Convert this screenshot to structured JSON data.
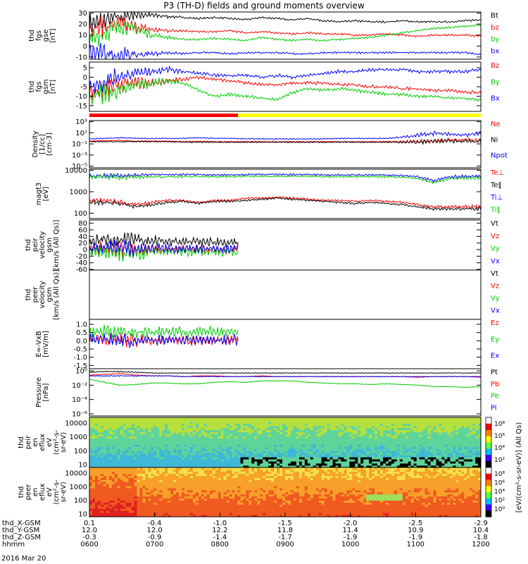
{
  "title": "P3 (TH-D) fields and ground moments overview",
  "footer_date": "2016 Mar 20",
  "chart_data": [
    {
      "id": "fgs_gse",
      "type": "line",
      "ylabel": [
        "thd",
        "fgs",
        "gse",
        "[nT]"
      ],
      "ylim": [
        -12,
        31
      ],
      "yticks": [
        "30",
        "20",
        "10",
        "0",
        "-10"
      ],
      "ytick_values": [
        30,
        20,
        10,
        0,
        -10
      ],
      "legend": [
        "Bt",
        "bz",
        "by",
        "bx"
      ],
      "series": [
        {
          "name": "Bt",
          "color": "#000000",
          "values": [
            20,
            23,
            27,
            29,
            28,
            27,
            26,
            25,
            26,
            25,
            24,
            26,
            25,
            24,
            25,
            23,
            22,
            23,
            22,
            22,
            23,
            22,
            22,
            22,
            23,
            24
          ]
        },
        {
          "name": "bz",
          "color": "#ff0000",
          "values": [
            16,
            18,
            20,
            17,
            15,
            14,
            14,
            13,
            13,
            14,
            12,
            13,
            12,
            11,
            12,
            11,
            11,
            10,
            10,
            11,
            10,
            9,
            10,
            10,
            10,
            9
          ]
        },
        {
          "name": "by",
          "color": "#00cc00",
          "values": [
            5,
            12,
            18,
            15,
            10,
            8,
            6,
            6,
            7,
            6,
            5,
            8,
            6,
            5,
            6,
            5,
            6,
            7,
            8,
            10,
            12,
            14,
            16,
            17,
            18,
            19
          ]
        },
        {
          "name": "bx",
          "color": "#0000ff",
          "values": [
            -6,
            -7,
            -8,
            -8,
            -7,
            -6,
            -7,
            -6,
            -6,
            -7,
            -6,
            -6,
            -6,
            -7,
            -7,
            -6,
            -6,
            -6,
            -6,
            -6,
            -6,
            -6,
            -6,
            -6,
            -6,
            -8
          ]
        }
      ],
      "osc": [
        10,
        10,
        8,
        6,
        3,
        2,
        1,
        1,
        1,
        1,
        1,
        1,
        1,
        1,
        1,
        1,
        1,
        1,
        1,
        1,
        1,
        1,
        1,
        1,
        1,
        1
      ]
    },
    {
      "id": "fgs_gsm",
      "type": "line",
      "ylabel": [
        "thd",
        "fgs",
        "gsm",
        "[nT]"
      ],
      "ylim": [
        -18,
        8
      ],
      "yticks": [
        "5",
        "0",
        "-5",
        "-10",
        "-15"
      ],
      "ytick_values": [
        5,
        0,
        -5,
        -10,
        -15
      ],
      "legend": [
        "Bz",
        "By",
        "Bx"
      ],
      "series": [
        {
          "name": "Bz",
          "color": "#ff0000",
          "values": [
            -8,
            -6,
            -4,
            -3,
            -3,
            -2,
            -1,
            0,
            -1,
            -2,
            -3,
            -4,
            -4,
            -3,
            -3,
            -3,
            -4,
            -4,
            -5,
            -5,
            -6,
            -6,
            -7,
            -7,
            -8,
            -8
          ]
        },
        {
          "name": "By",
          "color": "#00cc00",
          "values": [
            -11,
            -9,
            -6,
            -4,
            -3,
            -2,
            -3,
            -7,
            -10,
            -9,
            -10,
            -11,
            -12,
            -8,
            -6,
            -7,
            -6,
            -7,
            -8,
            -9,
            -9,
            -10,
            -10,
            -11,
            -11,
            -12
          ]
        },
        {
          "name": "Bx",
          "color": "#0000ff",
          "values": [
            -5,
            -2,
            1,
            2,
            3,
            4,
            3,
            2,
            1,
            1,
            1,
            0,
            1,
            0,
            1,
            2,
            3,
            3,
            4,
            4,
            4,
            3,
            3,
            3,
            3,
            4
          ]
        }
      ],
      "osc": [
        6,
        6,
        5,
        4,
        3,
        2,
        1,
        1,
        1,
        1,
        1,
        1,
        1,
        1,
        1,
        1,
        1,
        1,
        1,
        1,
        1,
        1,
        1,
        1,
        1,
        1
      ]
    },
    {
      "id": "density",
      "type": "line",
      "log": true,
      "ylabel": [
        "Density",
        "[1/cc]",
        "[cm-3]"
      ],
      "ylim": [
        -5.3,
        3.2
      ],
      "yticks": [
        "10³",
        "10¹",
        "10⁻¹",
        "10⁻³",
        "10⁻⁵"
      ],
      "ytick_values": [
        3,
        1,
        -1,
        -3,
        -5
      ],
      "legend": [
        "Ne",
        "Ni",
        "Npot"
      ],
      "series": [
        {
          "name": "Ne",
          "color": "#ff0000",
          "values": [
            -0.5,
            -0.4,
            -0.4,
            -0.5,
            -0.5,
            -0.5,
            -0.6,
            -0.5,
            -0.6,
            -0.6,
            -0.6,
            -0.6,
            -0.6,
            -0.6,
            -0.6,
            -0.6,
            -0.6,
            -0.6,
            -0.6,
            -0.6,
            -0.6,
            -0.6,
            -0.4,
            -0.3,
            -0.3,
            -0.3
          ]
        },
        {
          "name": "Ni",
          "color": "#000000",
          "values": [
            -0.6,
            -0.6,
            -0.6,
            -0.6,
            -0.6,
            -0.6,
            -0.7,
            -0.7,
            -0.7,
            -0.7,
            -0.7,
            -0.7,
            -0.7,
            -0.7,
            -0.7,
            -0.7,
            -0.7,
            -0.7,
            -0.7,
            -0.7,
            -0.7,
            -0.7,
            -0.5,
            -0.5,
            -0.5,
            -0.5
          ]
        },
        {
          "name": "Npot",
          "color": "#0000ff",
          "values": [
            -0.1,
            0.0,
            0.1,
            0.0,
            0.0,
            0.0,
            0.0,
            0.1,
            0.0,
            0.0,
            -0.1,
            -0.1,
            -0.1,
            -0.1,
            -0.1,
            -0.1,
            0.0,
            0.0,
            0.0,
            0.0,
            0.2,
            0.6,
            0.9,
            0.7,
            0.6,
            0.8
          ]
        }
      ],
      "osc": [
        0.1,
        0.1,
        0.1,
        0.1,
        0.1,
        0.1,
        0.1,
        0.1,
        0.1,
        0.1,
        0.1,
        0.1,
        0.1,
        0.1,
        0.1,
        0.1,
        0.1,
        0.1,
        0.1,
        0.1,
        0.2,
        0.4,
        0.5,
        0.4,
        0.4,
        0.5
      ]
    },
    {
      "id": "temperature",
      "type": "line",
      "log": true,
      "ylabel": [
        "magt3",
        "[eV]"
      ],
      "ylim": [
        1.75,
        4.05
      ],
      "yticks": [
        "10000",
        "1000",
        "100"
      ],
      "ytick_values": [
        4,
        3,
        2
      ],
      "legend": [
        "Te⊥",
        "Te‖",
        "Ti⊥",
        "Ti‖"
      ],
      "series": [
        {
          "name": "Te⊥",
          "color": "#ff0000",
          "values": [
            2.6,
            2.6,
            2.5,
            2.4,
            2.5,
            2.6,
            2.6,
            2.5,
            2.6,
            2.6,
            2.7,
            2.7,
            2.75,
            2.7,
            2.65,
            2.6,
            2.6,
            2.55,
            2.6,
            2.55,
            2.5,
            2.4,
            2.3,
            2.3,
            2.3,
            2.3
          ]
        },
        {
          "name": "Te‖",
          "color": "#000000",
          "values": [
            2.5,
            2.5,
            2.45,
            2.3,
            2.4,
            2.5,
            2.55,
            2.45,
            2.55,
            2.55,
            2.6,
            2.65,
            2.7,
            2.65,
            2.6,
            2.55,
            2.5,
            2.45,
            2.5,
            2.45,
            2.4,
            2.3,
            2.2,
            2.2,
            2.2,
            2.2
          ]
        },
        {
          "name": "Ti⊥",
          "color": "#0000ff",
          "values": [
            3.75,
            3.75,
            3.75,
            3.78,
            3.8,
            3.8,
            3.8,
            3.8,
            3.78,
            3.78,
            3.8,
            3.8,
            3.8,
            3.8,
            3.8,
            3.78,
            3.78,
            3.78,
            3.78,
            3.78,
            3.75,
            3.7,
            3.5,
            3.7,
            3.72,
            3.72
          ]
        },
        {
          "name": "Ti‖",
          "color": "#00cc00",
          "values": [
            3.7,
            3.68,
            3.66,
            3.68,
            3.7,
            3.7,
            3.7,
            3.72,
            3.7,
            3.7,
            3.72,
            3.72,
            3.72,
            3.72,
            3.72,
            3.7,
            3.7,
            3.7,
            3.7,
            3.7,
            3.68,
            3.62,
            3.4,
            3.62,
            3.64,
            3.64
          ]
        }
      ],
      "osc": [
        0.1,
        0.12,
        0.12,
        0.1,
        0.08,
        0.06,
        0.06,
        0.05,
        0.05,
        0.05,
        0.05,
        0.05,
        0.05,
        0.05,
        0.05,
        0.05,
        0.05,
        0.05,
        0.05,
        0.05,
        0.05,
        0.06,
        0.08,
        0.08,
        0.08,
        0.1
      ]
    },
    {
      "id": "peir_velocity",
      "type": "line",
      "ylabel": [
        "thd",
        "peir",
        "velocity",
        "gsm",
        "[km/s (All Qs)]"
      ],
      "ylim": [
        -62,
        90
      ],
      "yticks": [
        "80",
        "60",
        "40",
        "20",
        "0",
        "-20",
        "-40",
        "-60"
      ],
      "ytick_values": [
        80,
        60,
        40,
        20,
        0,
        -20,
        -40,
        -60
      ],
      "legend": [
        "Vt",
        "Vz",
        "Vy",
        "Vx"
      ],
      "x_end": 0.38,
      "series": [
        {
          "name": "Vt",
          "color": "#000000",
          "values": [
            25,
            28,
            30,
            28,
            26,
            25,
            24,
            24,
            22,
            22
          ]
        },
        {
          "name": "Vz",
          "color": "#ff0000",
          "values": [
            2,
            3,
            2,
            1,
            0,
            1,
            2,
            1,
            0,
            1
          ]
        },
        {
          "name": "Vy",
          "color": "#00cc00",
          "values": [
            -8,
            -6,
            -10,
            -12,
            -5,
            -4,
            -6,
            -5,
            -6,
            -5
          ]
        },
        {
          "name": "Vx",
          "color": "#0000ff",
          "values": [
            3,
            5,
            4,
            2,
            3,
            2,
            3,
            2,
            2,
            3
          ]
        }
      ],
      "osc": [
        22,
        24,
        30,
        22,
        18,
        16,
        16,
        16,
        16,
        16
      ]
    },
    {
      "id": "peer_velocity",
      "type": "line",
      "ylabel": [
        "thd",
        "peer",
        "velocity",
        "gsm",
        "[km/s (All Qs)]"
      ],
      "ylim": [
        0,
        1
      ],
      "yticks": [],
      "ytick_values": [],
      "legend": [
        "Vt",
        "Vz",
        "Vy",
        "Vx"
      ],
      "series": []
    },
    {
      "id": "efield",
      "type": "line",
      "ylabel": [
        "E=-VxB",
        "[mV/m]"
      ],
      "ylim": [
        -1.7,
        1.3
      ],
      "yticks": [
        "1.0",
        "0.5",
        "0.0",
        "-0.5",
        "-1.0",
        "-1.5"
      ],
      "ytick_values": [
        1.0,
        0.5,
        0.0,
        -0.5,
        -1.0,
        -1.5
      ],
      "legend": [
        "Ez",
        "Ey",
        "Ex"
      ],
      "x_end": 0.38,
      "series": [
        {
          "name": "Ez",
          "color": "#ff0000",
          "values": [
            0.05,
            0.1,
            0.05,
            0.0,
            0.05,
            0.05,
            0.0,
            0.05,
            0.05,
            0.05
          ]
        },
        {
          "name": "Ey",
          "color": "#00cc00",
          "values": [
            0.5,
            0.6,
            0.55,
            0.5,
            0.55,
            0.55,
            0.5,
            0.6,
            0.55,
            0.55
          ]
        },
        {
          "name": "Ex",
          "color": "#0000ff",
          "values": [
            0.15,
            0.1,
            0.0,
            -0.1,
            0.05,
            0.1,
            0.05,
            0.05,
            0.05,
            0.05
          ]
        }
      ],
      "osc": [
        0.4,
        0.4,
        0.5,
        0.4,
        0.35,
        0.35,
        0.35,
        0.35,
        0.35,
        0.35
      ]
    },
    {
      "id": "pressure",
      "type": "line",
      "log": true,
      "ylabel": [
        "Pressure",
        "[nPa]"
      ],
      "ylim": [
        -6.3,
        0.3
      ],
      "yticks": [
        "10⁰",
        "10⁻²",
        "10⁻⁴",
        "10⁻⁶"
      ],
      "ytick_values": [
        0,
        -2,
        -4,
        -6
      ],
      "legend": [
        "Pt",
        "Pb",
        "Pe",
        "Pi"
      ],
      "series": [
        {
          "name": "Pt",
          "color": "#000000",
          "values": [
            -0.2,
            -0.1,
            -0.1,
            -0.2,
            -0.3,
            -0.3,
            -0.3,
            -0.3,
            -0.3,
            -0.3,
            -0.3,
            -0.3,
            -0.3,
            -0.3,
            -0.3,
            -0.3,
            -0.3,
            -0.3,
            -0.3,
            -0.3,
            -0.3,
            -0.3,
            -0.3,
            -0.3,
            -0.3,
            -0.3
          ]
        },
        {
          "name": "Pb",
          "color": "#ff0000",
          "values": [
            -0.6,
            -0.5,
            -0.4,
            -0.6,
            -0.7,
            -0.7,
            -0.8,
            -0.7,
            -0.7,
            -0.8,
            -0.8,
            -0.7,
            -0.8,
            -0.8,
            -0.8,
            -0.8,
            -0.8,
            -0.8,
            -0.8,
            -0.8,
            -0.8,
            -0.9,
            -0.8,
            -0.8,
            -0.8,
            -0.9
          ]
        },
        {
          "name": "Pe",
          "color": "#00cc00",
          "values": [
            -1.2,
            -1.6,
            -2.0,
            -1.9,
            -1.7,
            -1.7,
            -1.8,
            -1.8,
            -1.6,
            -1.5,
            -1.6,
            -1.4,
            -1.4,
            -1.4,
            -1.6,
            -1.7,
            -1.8,
            -1.8,
            -1.9,
            -1.8,
            -1.9,
            -2.0,
            -2.2,
            -2.2,
            -2.3,
            -2.2
          ]
        },
        {
          "name": "Pi",
          "color": "#0000ff",
          "values": [
            -0.7,
            -0.7,
            -0.7,
            -0.7,
            -0.7,
            -0.7,
            -0.8,
            -0.8,
            -0.8,
            -0.8,
            -0.8,
            -0.8,
            -0.8,
            -0.8,
            -0.8,
            -0.8,
            -0.8,
            -0.8,
            -0.8,
            -0.8,
            -0.8,
            -0.8,
            -0.8,
            -0.8,
            -0.8,
            -0.8
          ]
        }
      ],
      "osc": [
        0.05,
        0.08,
        0.1,
        0.08,
        0.06,
        0.05,
        0.05,
        0.05,
        0.05,
        0.05,
        0.05,
        0.05,
        0.05,
        0.05,
        0.05,
        0.05,
        0.05,
        0.05,
        0.05,
        0.05,
        0.05,
        0.05,
        0.05,
        0.05,
        0.05,
        0.05
      ]
    },
    {
      "id": "peir_spectrogram",
      "type": "heatmap",
      "ylabel": [
        "thd",
        "peir",
        "en",
        "eflux",
        "eV",
        "(cm²-s-",
        "sr-eV)"
      ],
      "yticks": [
        "10000",
        "1000",
        "100",
        "10"
      ],
      "colorbar_label": "[eV/(cm²-s-sr-eV)] (All Qs)",
      "colorbar_ticks": [
        "10⁸",
        "10⁶",
        "10⁴",
        "10²"
      ]
    },
    {
      "id": "peer_spectrogram",
      "type": "heatmap",
      "ylabel": [
        "thd",
        "peer",
        "en",
        "eflux",
        "eV",
        "(cm²-s-",
        "sr-eV)"
      ],
      "yticks": [
        "10000",
        "1000",
        "100",
        "10"
      ],
      "colorbar_label": "[eV/(cm²-s-sr-eV)] (All Qs)",
      "colorbar_ticks": [
        "10⁸",
        "10⁶",
        "10⁴",
        "10²",
        "10⁰"
      ]
    }
  ],
  "x_axis": {
    "row_labels": [
      "thd_X-GSM",
      "thd_Y-GSM",
      "thd_Z-GSM",
      "hhmm"
    ],
    "columns": [
      [
        "0.1",
        "12.0",
        "-0.3",
        "0600"
      ],
      [
        "-0.4",
        "12.0",
        "-0.9",
        "0700"
      ],
      [
        "-1.0",
        "12.2",
        "-1.4",
        "0800"
      ],
      [
        "-1.5",
        "11.8",
        "-1.7",
        "0900"
      ],
      [
        "-2.0",
        "11.4",
        "-1.9",
        "1000"
      ],
      [
        "-2.5",
        "10.9",
        "-1.9",
        "1100"
      ],
      [
        "-2.9",
        "10.4",
        "-1.8",
        "1200"
      ]
    ]
  }
}
